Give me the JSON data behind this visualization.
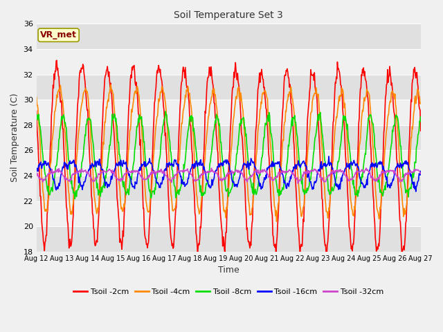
{
  "title": "Soil Temperature Set 3",
  "xlabel": "Time",
  "ylabel": "Soil Temperature (C)",
  "ylim": [
    18,
    36
  ],
  "xlim": [
    0,
    360
  ],
  "fig_bg_color": "#f0f0f0",
  "plot_bg_color": "#f0f0f0",
  "grid_band_color": "#e0e0e0",
  "annotation_text": "VR_met",
  "annotation_bg": "#ffffcc",
  "annotation_border": "#999900",
  "annotation_text_color": "#880000",
  "x_tick_labels": [
    "Aug 12",
    "Aug 13",
    "Aug 14",
    "Aug 15",
    "Aug 16",
    "Aug 17",
    "Aug 18",
    "Aug 19",
    "Aug 20",
    "Aug 21",
    "Aug 22",
    "Aug 23",
    "Aug 24",
    "Aug 25",
    "Aug 26",
    "Aug 27"
  ],
  "x_tick_positions": [
    0,
    24,
    48,
    72,
    96,
    120,
    144,
    168,
    192,
    216,
    240,
    264,
    288,
    312,
    336,
    360
  ],
  "yticks": [
    18,
    20,
    22,
    24,
    26,
    28,
    30,
    32,
    34,
    36
  ],
  "series_colors": [
    "#ff0000",
    "#ff8800",
    "#00dd00",
    "#0000ff",
    "#cc44cc"
  ],
  "series_labels": [
    "Tsoil -2cm",
    "Tsoil -4cm",
    "Tsoil -8cm",
    "Tsoil -16cm",
    "Tsoil -32cm"
  ],
  "n_points": 721,
  "title_fontsize": 10,
  "axis_label_fontsize": 9,
  "tick_fontsize": 8,
  "legend_fontsize": 8
}
